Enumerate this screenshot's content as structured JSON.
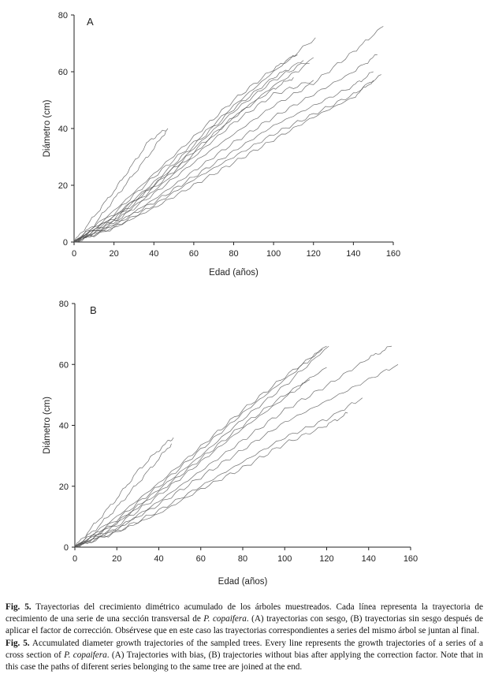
{
  "chart_data": [
    {
      "type": "line",
      "panel_label": "A",
      "xlabel": "Edad (años)",
      "ylabel": "Diámetro (cm)",
      "xlim": [
        0,
        160
      ],
      "ylim": [
        0,
        80
      ],
      "x_ticks": [
        0,
        20,
        40,
        60,
        80,
        100,
        120,
        140,
        160
      ],
      "y_ticks": [
        0,
        20,
        40,
        60,
        80
      ],
      "grid": false,
      "series": [
        {
          "x": [
            0,
            10,
            20,
            30,
            38,
            47
          ],
          "values": [
            0,
            9,
            18,
            28,
            36,
            40
          ]
        },
        {
          "x": [
            0,
            10,
            20,
            30,
            40,
            46
          ],
          "values": [
            0,
            6,
            15,
            24,
            33,
            39
          ]
        },
        {
          "x": [
            0,
            20,
            40,
            60,
            80,
            100,
            112
          ],
          "values": [
            0,
            11,
            24,
            37,
            50,
            61,
            66
          ]
        },
        {
          "x": [
            0,
            20,
            40,
            60,
            80,
            100,
            121
          ],
          "values": [
            0,
            10,
            23,
            35,
            48,
            60,
            72
          ]
        },
        {
          "x": [
            0,
            20,
            40,
            60,
            80,
            100,
            120
          ],
          "values": [
            0,
            8,
            20,
            33,
            46,
            57,
            65
          ]
        },
        {
          "x": [
            0,
            20,
            40,
            60,
            80,
            100,
            115
          ],
          "values": [
            0,
            9,
            21,
            34,
            47,
            58,
            64
          ]
        },
        {
          "x": [
            0,
            20,
            40,
            60,
            80,
            100,
            118
          ],
          "values": [
            0,
            8,
            19,
            31,
            44,
            55,
            63
          ]
        },
        {
          "x": [
            0,
            20,
            40,
            60,
            80,
            100,
            120
          ],
          "values": [
            0,
            7,
            18,
            30,
            42,
            52,
            57
          ]
        },
        {
          "x": [
            0,
            20,
            40,
            60,
            80,
            100,
            110
          ],
          "values": [
            0,
            9,
            20,
            32,
            44,
            54,
            58
          ]
        },
        {
          "x": [
            0,
            20,
            40,
            60,
            80,
            100,
            120,
            140,
            155
          ],
          "values": [
            0,
            7,
            17,
            28,
            38,
            48,
            56,
            67,
            76
          ]
        },
        {
          "x": [
            0,
            20,
            40,
            60,
            80,
            100,
            120,
            140,
            152
          ],
          "values": [
            0,
            6,
            15,
            25,
            35,
            44,
            52,
            60,
            66
          ]
        },
        {
          "x": [
            0,
            20,
            40,
            60,
            80,
            100,
            120,
            140,
            150
          ],
          "values": [
            0,
            6,
            14,
            23,
            32,
            41,
            48,
            55,
            60
          ]
        },
        {
          "x": [
            0,
            20,
            40,
            60,
            80,
            100,
            120,
            140,
            154
          ],
          "values": [
            0,
            5,
            13,
            22,
            30,
            38,
            45,
            52,
            59
          ]
        },
        {
          "x": [
            0,
            20,
            40,
            60,
            80,
            100,
            120,
            140,
            150
          ],
          "values": [
            0,
            5,
            12,
            20,
            28,
            36,
            44,
            51,
            57
          ]
        }
      ]
    },
    {
      "type": "line",
      "panel_label": "B",
      "xlabel": "Edad (años)",
      "ylabel": "Diámetro (cm)",
      "xlim": [
        0,
        160
      ],
      "ylim": [
        0,
        80
      ],
      "x_ticks": [
        0,
        20,
        40,
        60,
        80,
        100,
        120,
        140,
        160
      ],
      "y_ticks": [
        0,
        20,
        40,
        60,
        80
      ],
      "grid": false,
      "series": [
        {
          "x": [
            0,
            10,
            20,
            30,
            40,
            47
          ],
          "values": [
            0,
            8,
            16,
            25,
            32,
            36
          ]
        },
        {
          "x": [
            0,
            10,
            20,
            30,
            40,
            46
          ],
          "values": [
            0,
            6,
            13,
            21,
            29,
            34
          ]
        },
        {
          "x": [
            0,
            20,
            40,
            60,
            80,
            100,
            120
          ],
          "values": [
            0,
            10,
            21,
            33,
            45,
            56,
            66
          ]
        },
        {
          "x": [
            0,
            20,
            40,
            60,
            80,
            100,
            118
          ],
          "values": [
            0,
            9,
            20,
            32,
            44,
            55,
            65
          ]
        },
        {
          "x": [
            0,
            20,
            40,
            60,
            80,
            100,
            121
          ],
          "values": [
            0,
            8,
            19,
            30,
            42,
            53,
            66
          ]
        },
        {
          "x": [
            0,
            20,
            40,
            60,
            80,
            100,
            120
          ],
          "values": [
            0,
            8,
            18,
            29,
            40,
            50,
            59
          ]
        },
        {
          "x": [
            0,
            20,
            40,
            60,
            80,
            100,
            112
          ],
          "values": [
            0,
            7,
            17,
            28,
            39,
            49,
            55
          ]
        },
        {
          "x": [
            0,
            20,
            40,
            60,
            80,
            100,
            120,
            140,
            151
          ],
          "values": [
            0,
            6,
            15,
            25,
            35,
            45,
            53,
            62,
            66
          ]
        },
        {
          "x": [
            0,
            20,
            40,
            60,
            80,
            100,
            120,
            140,
            154
          ],
          "values": [
            0,
            6,
            14,
            23,
            32,
            41,
            48,
            55,
            60
          ]
        },
        {
          "x": [
            0,
            20,
            40,
            60,
            80,
            100,
            120,
            137
          ],
          "values": [
            0,
            5,
            12,
            20,
            28,
            36,
            42,
            49
          ]
        },
        {
          "x": [
            0,
            20,
            40,
            60,
            80,
            100,
            120,
            130
          ],
          "values": [
            0,
            5,
            11,
            19,
            26,
            34,
            40,
            44
          ]
        }
      ]
    }
  ],
  "caption": {
    "es": {
      "fig_label": "Fig. 5.",
      "text_before_species": " Trayectorias del crecimiento dimétrico acumulado de los árboles muestreados. Cada línea representa la trayectoria de crecimiento de una serie de una sección transversal de ",
      "species": "P. copaifera",
      "text_after_species": ". (A) trayectorias con sesgo, (B) trayectorias sin sesgo después de aplicar el factor de corrección. Obsérvese que en este caso las trayectorias correspondientes a series del mismo árbol se juntan al final."
    },
    "en": {
      "fig_label": "Fig. 5.",
      "text_before_species": " Accumulated diameter growth trajectories of the sampled trees. Every line represents the growth trajectories of a series of a cross section of ",
      "species": "P. copaifera",
      "text_after_species": ". (A) Trajectories with bias, (B) trajectories without bias after applying the correction factor. Note that in this case the paths of diferent series belonging to the same tree are joined at the end."
    }
  }
}
